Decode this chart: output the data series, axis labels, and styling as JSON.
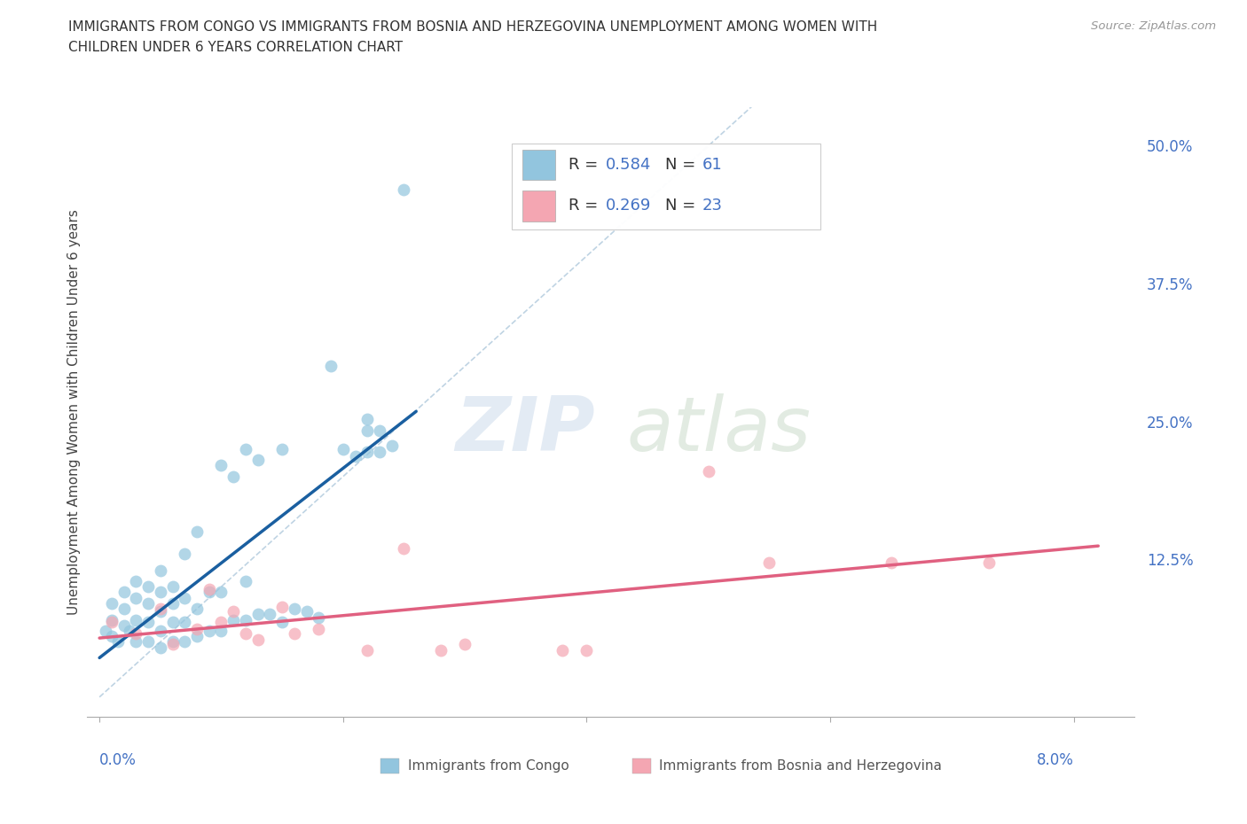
{
  "title_line1": "IMMIGRANTS FROM CONGO VS IMMIGRANTS FROM BOSNIA AND HERZEGOVINA UNEMPLOYMENT AMONG WOMEN WITH",
  "title_line2": "CHILDREN UNDER 6 YEARS CORRELATION CHART",
  "source": "Source: ZipAtlas.com",
  "ylabel": "Unemployment Among Women with Children Under 6 years",
  "color_congo": "#92c5de",
  "color_bosnia": "#f4a6b2",
  "color_line_congo": "#1a5fa0",
  "color_line_bosnia": "#e06080",
  "color_diag": "#b8cfe0",
  "xlim": [
    -0.001,
    0.085
  ],
  "ylim": [
    -0.018,
    0.535
  ],
  "ytick_vals": [
    0.0,
    0.125,
    0.25,
    0.375,
    0.5
  ],
  "ytick_labels": [
    "",
    "12.5%",
    "25.0%",
    "37.5%",
    "50.0%"
  ],
  "xtick_vals": [
    0.0,
    0.02,
    0.04,
    0.06,
    0.08
  ],
  "xtick_label_left": "0.0%",
  "xtick_label_right": "8.0%",
  "legend_congo_r": "0.584",
  "legend_congo_n": "61",
  "legend_bosnia_r": "0.269",
  "legend_bosnia_n": "23",
  "label_congo": "Immigrants from Congo",
  "label_bosnia": "Immigrants from Bosnia and Herzegovina",
  "watermark_zip": "ZIP",
  "watermark_atlas": "atlas",
  "congo_x": [
    0.0005,
    0.001,
    0.001,
    0.001,
    0.0015,
    0.002,
    0.002,
    0.002,
    0.0025,
    0.003,
    0.003,
    0.003,
    0.003,
    0.004,
    0.004,
    0.004,
    0.004,
    0.005,
    0.005,
    0.005,
    0.005,
    0.005,
    0.006,
    0.006,
    0.006,
    0.006,
    0.007,
    0.007,
    0.007,
    0.007,
    0.008,
    0.008,
    0.008,
    0.009,
    0.009,
    0.01,
    0.01,
    0.01,
    0.011,
    0.011,
    0.012,
    0.012,
    0.012,
    0.013,
    0.013,
    0.014,
    0.015,
    0.015,
    0.016,
    0.017,
    0.018,
    0.019,
    0.02,
    0.021,
    0.022,
    0.022,
    0.022,
    0.023,
    0.023,
    0.024,
    0.025
  ],
  "congo_y": [
    0.06,
    0.055,
    0.07,
    0.085,
    0.05,
    0.065,
    0.08,
    0.095,
    0.06,
    0.05,
    0.07,
    0.09,
    0.105,
    0.05,
    0.068,
    0.085,
    0.1,
    0.045,
    0.06,
    0.078,
    0.095,
    0.115,
    0.05,
    0.068,
    0.085,
    0.1,
    0.05,
    0.068,
    0.09,
    0.13,
    0.055,
    0.08,
    0.15,
    0.06,
    0.095,
    0.06,
    0.095,
    0.21,
    0.07,
    0.2,
    0.07,
    0.105,
    0.225,
    0.075,
    0.215,
    0.075,
    0.068,
    0.225,
    0.08,
    0.078,
    0.072,
    0.3,
    0.225,
    0.218,
    0.222,
    0.242,
    0.252,
    0.222,
    0.242,
    0.228,
    0.46
  ],
  "bosnia_x": [
    0.001,
    0.003,
    0.005,
    0.006,
    0.008,
    0.009,
    0.01,
    0.011,
    0.012,
    0.013,
    0.015,
    0.016,
    0.018,
    0.022,
    0.025,
    0.028,
    0.03,
    0.038,
    0.04,
    0.05,
    0.055,
    0.065,
    0.073
  ],
  "bosnia_y": [
    0.068,
    0.058,
    0.08,
    0.048,
    0.062,
    0.098,
    0.068,
    0.078,
    0.058,
    0.052,
    0.082,
    0.058,
    0.062,
    0.042,
    0.135,
    0.042,
    0.048,
    0.042,
    0.042,
    0.205,
    0.122,
    0.122,
    0.122
  ]
}
